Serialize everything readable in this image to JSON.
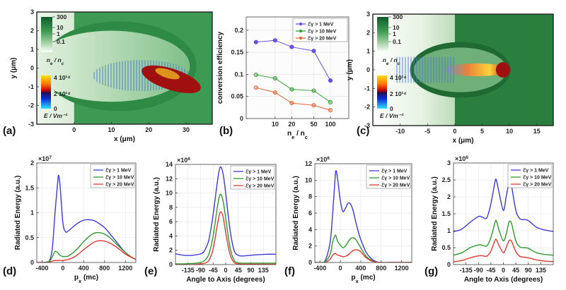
{
  "colors": {
    "blue": "#3b3bdc",
    "green": "#2e9a2e",
    "red": "#e03a2e",
    "b_blue": "#6a4fe0",
    "b_green": "#3aa03a",
    "b_orange": "#e0683a",
    "field_green": "#3c9a52"
  },
  "chart_data": [
    {
      "id": "a",
      "panel_label": "(a)",
      "type": "heatmap",
      "xlabel": "x (μm)",
      "ylabel": "y (μm)",
      "xlim": [
        -10,
        37
      ],
      "ylim": [
        -3,
        3
      ],
      "xticks": [
        0,
        10,
        20,
        30
      ],
      "yticks": [
        -3,
        -2,
        -1,
        0,
        1,
        2,
        3
      ],
      "colorbar_density": {
        "label": "n_e / n_c",
        "ticks": [
          "300",
          "10",
          "1",
          "0.1"
        ]
      },
      "colorbar_field": {
        "label": "E / Vm⁻¹",
        "ticks": [
          "4 10¹⁴",
          "2 10¹⁴",
          "0"
        ]
      }
    },
    {
      "id": "b",
      "panel_label": "(b)",
      "type": "line",
      "xlabel": "n_e / n_c",
      "ylabel": "conversion efficiency",
      "xscale": "log",
      "xlim": [
        3,
        215
      ],
      "ylim": [
        0,
        0.23
      ],
      "xticks": [
        10,
        20,
        50,
        100
      ],
      "yticks": [
        0,
        0.05,
        0.1,
        0.15,
        0.2
      ],
      "ytick_labels": [
        "0",
        "0.05",
        "0.1",
        "0.15",
        "0.2"
      ],
      "grid": true,
      "legend": "top-right",
      "x": [
        4.5,
        10,
        20,
        50,
        100
      ],
      "series": [
        {
          "name": "ℰγ >  1 MeV",
          "color": "#6a4fe0",
          "values": [
            0.173,
            0.177,
            0.162,
            0.153,
            0.086
          ]
        },
        {
          "name": "ℰγ > 10 MeV",
          "color": "#3aa03a",
          "values": [
            0.099,
            0.091,
            0.066,
            0.063,
            0.037
          ]
        },
        {
          "name": "ℰγ > 20 MeV",
          "color": "#e0683a",
          "values": [
            0.07,
            0.059,
            0.035,
            0.03,
            0.019
          ]
        }
      ]
    },
    {
      "id": "c",
      "panel_label": "(c)",
      "type": "heatmap",
      "xlabel": "x (μm)",
      "ylabel": "y (μm)",
      "xlim": [
        -15,
        18
      ],
      "ylim": [
        -3,
        3
      ],
      "xticks": [
        -10,
        -5,
        0,
        5,
        10,
        15
      ],
      "yticks": [
        -3,
        -2,
        -1,
        0,
        1,
        2,
        3
      ],
      "colorbar_density": {
        "label": "n_e / n_c",
        "ticks": [
          "300",
          "10",
          "1",
          "0.1"
        ]
      },
      "colorbar_field": {
        "label": "E / Vm⁻¹",
        "ticks": [
          "4 10¹⁴",
          "2 10¹⁴",
          "0"
        ]
      }
    },
    {
      "id": "d",
      "panel_label": "(d)",
      "type": "line",
      "xlabel": "p_x (mc)",
      "ylabel": "Radiated Energy (a.u.)",
      "exponent": "×10^7",
      "xlim": [
        -500,
        1400
      ],
      "ylim": [
        0,
        2
      ],
      "xticks": [
        -400,
        0,
        400,
        800,
        1200
      ],
      "yticks": [
        0,
        0.5,
        1,
        1.5,
        2
      ],
      "ytick_labels": [
        "0",
        "0.5",
        "1",
        "1.5",
        "2"
      ],
      "grid": true,
      "legend": "top-right",
      "x": [
        -500,
        -400,
        -300,
        -250,
        -200,
        -150,
        -100,
        -80,
        -50,
        0,
        50,
        100,
        200,
        300,
        400,
        500,
        600,
        700,
        800,
        900,
        1000,
        1100,
        1200,
        1300,
        1400
      ],
      "series": [
        {
          "name": "ℰγ >  1 MeV",
          "color": "#3b3bdc",
          "values": [
            0,
            0,
            0.01,
            0.05,
            0.3,
            1.0,
            1.6,
            1.75,
            1.5,
            0.8,
            0.62,
            0.63,
            0.72,
            0.8,
            0.85,
            0.86,
            0.84,
            0.78,
            0.7,
            0.58,
            0.45,
            0.32,
            0.2,
            0.12,
            0.06
          ]
        },
        {
          "name": "ℰγ > 10 MeV",
          "color": "#2e9a2e",
          "values": [
            0,
            0,
            0.01,
            0.03,
            0.12,
            0.22,
            0.2,
            0.17,
            0.14,
            0.12,
            0.12,
            0.13,
            0.2,
            0.3,
            0.42,
            0.52,
            0.59,
            0.6,
            0.57,
            0.5,
            0.4,
            0.3,
            0.2,
            0.12,
            0.06
          ]
        },
        {
          "name": "ℰγ > 20 MeV",
          "color": "#e03a2e",
          "values": [
            0,
            0,
            0,
            0.01,
            0.03,
            0.04,
            0.04,
            0.04,
            0.04,
            0.04,
            0.05,
            0.06,
            0.1,
            0.17,
            0.26,
            0.34,
            0.41,
            0.44,
            0.43,
            0.39,
            0.33,
            0.25,
            0.17,
            0.11,
            0.06
          ]
        }
      ]
    },
    {
      "id": "e",
      "panel_label": "(e)",
      "type": "line",
      "xlabel": "Angle to Axis (degrees)",
      "ylabel": "Radiated Energy (a.u.)",
      "exponent": "×10^6",
      "xlim": [
        -180,
        180
      ],
      "ylim": [
        0,
        14
      ],
      "xticks": [
        -135,
        -90,
        -45,
        0,
        45,
        90,
        135
      ],
      "yticks": [
        0,
        2,
        4,
        6,
        8,
        10,
        12,
        14
      ],
      "ytick_labels": [
        "0",
        "2",
        "4",
        "6",
        "8",
        "10",
        "12",
        "14"
      ],
      "grid": true,
      "legend": "top-right",
      "x": [
        -180,
        -150,
        -120,
        -90,
        -75,
        -60,
        -45,
        -30,
        -20,
        -10,
        0,
        15,
        30,
        45,
        60,
        90,
        120,
        150,
        180
      ],
      "series": [
        {
          "name": "ℰγ >  1 MeV",
          "color": "#3b3bdc",
          "values": [
            1.5,
            1.3,
            1.3,
            1.5,
            2,
            3.5,
            7,
            11.5,
            13.6,
            12.8,
            10,
            5,
            2,
            1.3,
            1.2,
            1.3,
            1.4,
            1.45,
            1.45
          ]
        },
        {
          "name": "ℰγ > 10 MeV",
          "color": "#2e9a2e",
          "values": [
            0.1,
            0.1,
            0.15,
            0.3,
            0.6,
            1.5,
            4,
            8,
            9.8,
            9,
            6.5,
            2.5,
            0.6,
            0.25,
            0.2,
            0.2,
            0.2,
            0.2,
            0.2
          ]
        },
        {
          "name": "ℰγ > 20 MeV",
          "color": "#e03a2e",
          "values": [
            0,
            0,
            0,
            0.1,
            0.2,
            0.6,
            2.2,
            5.5,
            7.3,
            6.8,
            4.5,
            1.5,
            0.3,
            0.1,
            0.05,
            0.05,
            0.05,
            0.05,
            0.05
          ]
        }
      ]
    },
    {
      "id": "f",
      "panel_label": "(f)",
      "type": "line",
      "xlabel": "p_x (mc)",
      "ylabel": "Radiated Energy (a.u.)",
      "exponent": "×10^6",
      "xlim": [
        -500,
        1400
      ],
      "ylim": [
        0,
        12
      ],
      "xticks": [
        -400,
        0,
        400,
        800,
        1200
      ],
      "yticks": [
        0,
        2,
        4,
        6,
        8,
        10,
        12
      ],
      "ytick_labels": [
        "0",
        "2",
        "4",
        "6",
        "8",
        "10",
        "12"
      ],
      "grid": true,
      "legend": "top-right",
      "x": [
        -500,
        -400,
        -300,
        -200,
        -150,
        -100,
        -80,
        -50,
        0,
        50,
        100,
        150,
        200,
        250,
        300,
        350,
        400,
        500,
        600,
        700,
        800,
        1000,
        1400
      ],
      "series": [
        {
          "name": "ℰγ >  1 MeV",
          "color": "#3b3bdc",
          "values": [
            0,
            0,
            0.2,
            2.5,
            6,
            10.5,
            11.1,
            10,
            7.5,
            6.2,
            6.6,
            7.2,
            7.1,
            6.3,
            5,
            3.8,
            2.8,
            1.3,
            0.5,
            0.1,
            0,
            0,
            0
          ]
        },
        {
          "name": "ℰγ > 10 MeV",
          "color": "#2e9a2e",
          "values": [
            0,
            0,
            0.1,
            1,
            2.5,
            3.3,
            3.1,
            2.5,
            2.1,
            1.8,
            2,
            2.5,
            2.9,
            3,
            2.8,
            2.3,
            1.8,
            0.8,
            0.3,
            0.05,
            0,
            0,
            0
          ]
        },
        {
          "name": "ℰγ > 20 MeV",
          "color": "#e03a2e",
          "values": [
            0,
            0,
            0,
            0.4,
            0.9,
            1.1,
            1,
            0.9,
            0.8,
            0.7,
            0.75,
            0.9,
            1.2,
            1.45,
            1.55,
            1.5,
            1.3,
            0.6,
            0.2,
            0.05,
            0,
            0,
            0
          ]
        }
      ]
    },
    {
      "id": "g",
      "panel_label": "(g)",
      "type": "line",
      "xlabel": "Angle to Axis (degrees)",
      "ylabel": "Radiated Energy (a.u.)",
      "exponent": "×10^6",
      "xlim": [
        -180,
        180
      ],
      "ylim": [
        0,
        3
      ],
      "xticks": [
        -135,
        -90,
        -45,
        0,
        45,
        90,
        135
      ],
      "yticks": [
        0,
        0.5,
        1,
        1.5,
        2,
        2.5,
        3
      ],
      "ytick_labels": [
        "0",
        "0.5",
        "1",
        "1.5",
        "2",
        "2.5",
        "3"
      ],
      "grid": true,
      "legend": "top-right",
      "x": [
        -180,
        -150,
        -120,
        -90,
        -75,
        -60,
        -45,
        -30,
        -25,
        -15,
        0,
        10,
        20,
        25,
        30,
        45,
        60,
        75,
        90,
        120,
        150,
        180
      ],
      "series": [
        {
          "name": "ℰγ >  1 MeV",
          "color": "#3b3bdc",
          "values": [
            0.97,
            1.05,
            1.25,
            1.42,
            1.4,
            1.38,
            1.8,
            2.45,
            2.48,
            2.1,
            1.6,
            2.0,
            2.4,
            2.43,
            2.3,
            1.6,
            1.35,
            1.33,
            1.3,
            1.1,
            1.02,
            0.98
          ]
        },
        {
          "name": "ℰγ > 10 MeV",
          "color": "#2e9a2e",
          "values": [
            0.28,
            0.35,
            0.5,
            0.58,
            0.57,
            0.55,
            0.8,
            1.25,
            1.28,
            1.0,
            0.7,
            0.9,
            1.25,
            1.27,
            1.2,
            0.7,
            0.52,
            0.5,
            0.48,
            0.35,
            0.3,
            0.28
          ]
        },
        {
          "name": "ℰγ > 20 MeV",
          "color": "#e03a2e",
          "values": [
            0.08,
            0.12,
            0.2,
            0.26,
            0.26,
            0.25,
            0.4,
            0.72,
            0.73,
            0.55,
            0.35,
            0.5,
            0.7,
            0.72,
            0.68,
            0.38,
            0.24,
            0.22,
            0.2,
            0.14,
            0.1,
            0.09
          ]
        }
      ]
    }
  ]
}
